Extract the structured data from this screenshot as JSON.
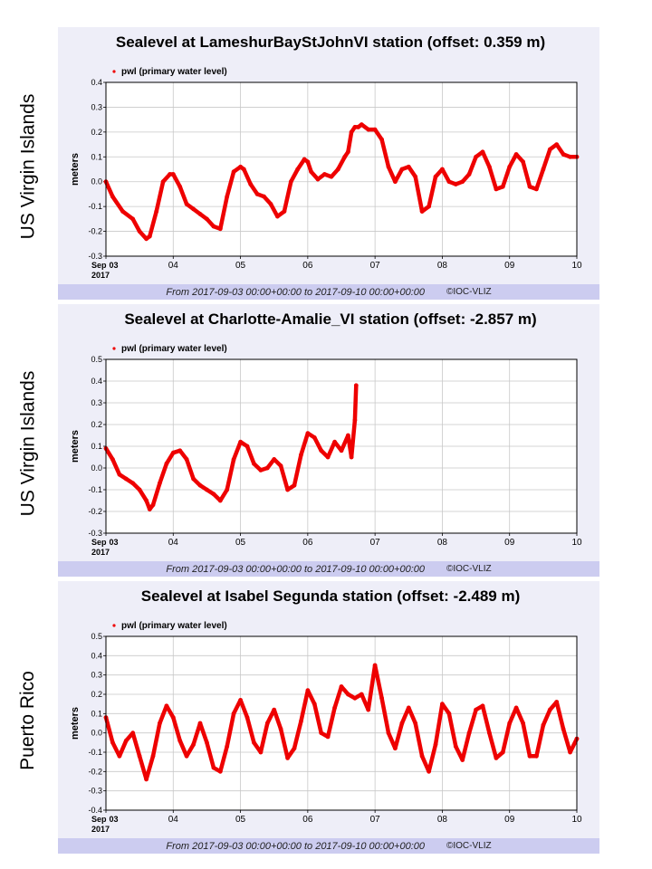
{
  "chart_data": [
    {
      "type": "scatter",
      "side_label": "US Virgin Islands",
      "title": "Sealevel at LameshurBayStJohnVI station (offset: 0.359 m)",
      "legend": "pwl (primary water level)",
      "ylabel": "meters",
      "ylim": [
        -0.3,
        0.4
      ],
      "yticks": [
        "0.4",
        "0.3",
        "0.2",
        "0.1",
        "0.0",
        "-0.1",
        "-0.2",
        "-0.3"
      ],
      "xlim": [
        3,
        10
      ],
      "xticks": [
        "03",
        "04",
        "05",
        "06",
        "07",
        "08",
        "09",
        "10"
      ],
      "x_origin_month": "Sep",
      "x_origin_year": "2017",
      "footer_from": "From 2017-09-03 00:00+00:00 to 2017-09-10 00:00+00:00",
      "footer_copy": "©IOC-VLIZ",
      "series": [
        {
          "name": "pwl (primary water level)",
          "color": "#ee0000",
          "x": [
            3.0,
            3.1,
            3.25,
            3.4,
            3.5,
            3.6,
            3.65,
            3.75,
            3.85,
            3.95,
            4.0,
            4.1,
            4.2,
            4.3,
            4.4,
            4.5,
            4.6,
            4.7,
            4.8,
            4.9,
            5.0,
            5.05,
            5.15,
            5.25,
            5.35,
            5.45,
            5.55,
            5.65,
            5.75,
            5.85,
            5.95,
            6.0,
            6.05,
            6.15,
            6.25,
            6.35,
            6.45,
            6.55,
            6.6,
            6.65,
            6.7,
            6.75,
            6.8,
            6.9,
            7.0,
            7.1,
            7.2,
            7.3,
            7.4,
            7.5,
            7.6,
            7.7,
            7.8,
            7.9,
            8.0,
            8.1,
            8.2,
            8.3,
            8.4,
            8.5,
            8.6,
            8.7,
            8.8,
            8.9,
            9.0,
            9.1,
            9.2,
            9.3,
            9.4,
            9.5,
            9.6,
            9.7,
            9.8,
            9.9,
            10.0
          ],
          "y": [
            0.0,
            -0.06,
            -0.12,
            -0.15,
            -0.2,
            -0.23,
            -0.22,
            -0.12,
            0.0,
            0.03,
            0.03,
            -0.02,
            -0.09,
            -0.11,
            -0.13,
            -0.15,
            -0.18,
            -0.19,
            -0.06,
            0.04,
            0.06,
            0.05,
            -0.01,
            -0.05,
            -0.06,
            -0.09,
            -0.14,
            -0.12,
            0.0,
            0.05,
            0.09,
            0.08,
            0.04,
            0.01,
            0.03,
            0.02,
            0.05,
            0.1,
            0.12,
            0.2,
            0.22,
            0.22,
            0.23,
            0.21,
            0.21,
            0.17,
            0.06,
            0.0,
            0.05,
            0.06,
            0.02,
            -0.12,
            -0.1,
            0.02,
            0.05,
            0.0,
            -0.01,
            0.0,
            0.03,
            0.1,
            0.12,
            0.06,
            -0.03,
            -0.02,
            0.06,
            0.11,
            0.08,
            -0.02,
            -0.03,
            0.05,
            0.13,
            0.15,
            0.11,
            0.1,
            0.1
          ]
        }
      ]
    },
    {
      "type": "scatter",
      "side_label": "US Virgin Islands",
      "title": "Sealevel at Charlotte-Amalie_VI station (offset: -2.857 m)",
      "legend": "pwl (primary water level)",
      "ylabel": "meters",
      "ylim": [
        -0.3,
        0.5
      ],
      "yticks": [
        "0.5",
        "0.4",
        "0.3",
        "0.2",
        "0.1",
        "0.0",
        "-0.1",
        "-0.2",
        "-0.3"
      ],
      "xlim": [
        3,
        10
      ],
      "xticks": [
        "03",
        "04",
        "05",
        "06",
        "07",
        "08",
        "09",
        "10"
      ],
      "x_origin_month": "Sep",
      "x_origin_year": "2017",
      "footer_from": "From 2017-09-03 00:00+00:00 to 2017-09-10 00:00+00:00",
      "footer_copy": "©IOC-VLIZ",
      "series": [
        {
          "name": "pwl (primary water level)",
          "color": "#ee0000",
          "x": [
            3.0,
            3.1,
            3.2,
            3.3,
            3.4,
            3.5,
            3.6,
            3.65,
            3.7,
            3.8,
            3.9,
            4.0,
            4.1,
            4.2,
            4.3,
            4.4,
            4.5,
            4.6,
            4.7,
            4.8,
            4.9,
            5.0,
            5.1,
            5.2,
            5.3,
            5.4,
            5.5,
            5.6,
            5.7,
            5.8,
            5.9,
            6.0,
            6.1,
            6.2,
            6.3,
            6.4,
            6.5,
            6.6,
            6.65,
            6.7,
            6.72
          ],
          "y": [
            0.09,
            0.04,
            -0.03,
            -0.05,
            -0.07,
            -0.1,
            -0.15,
            -0.19,
            -0.17,
            -0.07,
            0.02,
            0.07,
            0.08,
            0.04,
            -0.05,
            -0.08,
            -0.1,
            -0.12,
            -0.15,
            -0.1,
            0.04,
            0.12,
            0.1,
            0.02,
            -0.01,
            0.0,
            0.04,
            0.01,
            -0.1,
            -0.08,
            0.06,
            0.16,
            0.14,
            0.08,
            0.05,
            0.12,
            0.08,
            0.15,
            0.05,
            0.22,
            0.38
          ]
        }
      ]
    },
    {
      "type": "scatter",
      "side_label": "Puerto Rico",
      "title": "Sealevel at Isabel Segunda station (offset: -2.489 m)",
      "legend": "pwl (primary water level)",
      "ylabel": "meters",
      "ylim": [
        -0.4,
        0.5
      ],
      "yticks": [
        "0.5",
        "0.4",
        "0.3",
        "0.2",
        "0.1",
        "0.0",
        "-0.1",
        "-0.2",
        "-0.3",
        "-0.4"
      ],
      "xlim": [
        3,
        10
      ],
      "xticks": [
        "03",
        "04",
        "05",
        "06",
        "07",
        "08",
        "09",
        "10"
      ],
      "x_origin_month": "Sep",
      "x_origin_year": "2017",
      "footer_from": "From 2017-09-03 00:00+00:00 to 2017-09-10 00:00+00:00",
      "footer_copy": "©IOC-VLIZ",
      "series": [
        {
          "name": "pwl (primary water level)",
          "color": "#ee0000",
          "x": [
            3.0,
            3.1,
            3.2,
            3.3,
            3.4,
            3.5,
            3.6,
            3.7,
            3.8,
            3.9,
            4.0,
            4.1,
            4.2,
            4.3,
            4.4,
            4.5,
            4.6,
            4.7,
            4.8,
            4.9,
            5.0,
            5.1,
            5.2,
            5.3,
            5.4,
            5.5,
            5.6,
            5.7,
            5.8,
            5.9,
            6.0,
            6.1,
            6.2,
            6.3,
            6.4,
            6.5,
            6.6,
            6.7,
            6.8,
            6.9,
            7.0,
            7.1,
            7.2,
            7.3,
            7.4,
            7.5,
            7.6,
            7.7,
            7.8,
            7.9,
            8.0,
            8.1,
            8.2,
            8.3,
            8.4,
            8.5,
            8.6,
            8.7,
            8.8,
            8.9,
            9.0,
            9.1,
            9.2,
            9.3,
            9.4,
            9.5,
            9.6,
            9.7,
            9.8,
            9.9,
            10.0
          ],
          "y": [
            0.08,
            -0.05,
            -0.12,
            -0.04,
            0.0,
            -0.12,
            -0.24,
            -0.12,
            0.05,
            0.14,
            0.08,
            -0.04,
            -0.12,
            -0.06,
            0.05,
            -0.05,
            -0.18,
            -0.2,
            -0.07,
            0.1,
            0.17,
            0.08,
            -0.05,
            -0.1,
            0.05,
            0.12,
            0.02,
            -0.13,
            -0.08,
            0.06,
            0.22,
            0.15,
            0.0,
            -0.02,
            0.13,
            0.24,
            0.2,
            0.18,
            0.2,
            0.12,
            0.35,
            0.18,
            0.0,
            -0.08,
            0.05,
            0.13,
            0.05,
            -0.12,
            -0.2,
            -0.06,
            0.15,
            0.1,
            -0.07,
            -0.14,
            0.0,
            0.12,
            0.14,
            0.0,
            -0.13,
            -0.1,
            0.05,
            0.13,
            0.05,
            -0.12,
            -0.12,
            0.04,
            0.12,
            0.16,
            0.02,
            -0.1,
            -0.03
          ]
        }
      ]
    }
  ]
}
